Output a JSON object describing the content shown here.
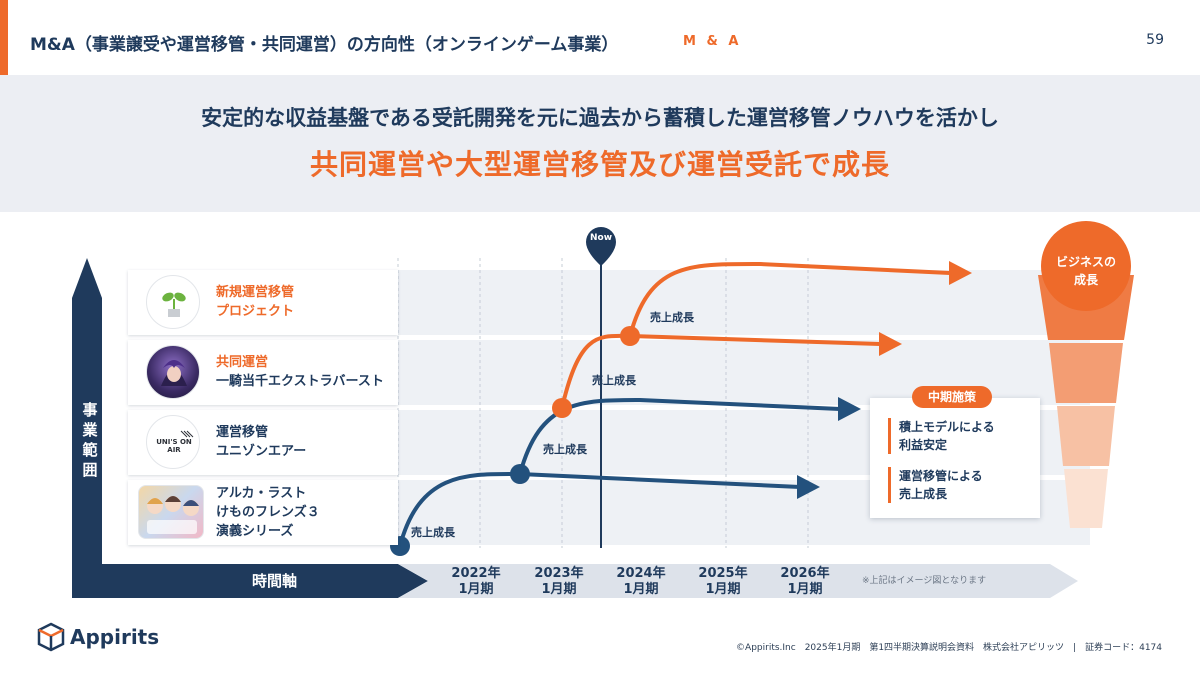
{
  "header": {
    "title": "M&A（事業譲受や運営移管・共同運営）の方向性（オンラインゲーム事業）",
    "tag": "M & A",
    "page_number": "59"
  },
  "banner": {
    "line1": "安定的な収益基盤である受託開発を元に過去から蓄積した運営移管ノウハウを活かし",
    "line2": "共同運営や大型運営移管及び運営受託で成長"
  },
  "now_label": "Now",
  "rows": [
    {
      "line1": "新規運営移管",
      "line2": "プロジェクト",
      "line3": "",
      "icon": "sprout-icon"
    },
    {
      "line1": "共同運営",
      "line2": "一騎当千エクストラバースト",
      "line3": "",
      "icon": "game-character-icon"
    },
    {
      "line1": "運営移管",
      "line2": "ユニゾンエアー",
      "line3": "",
      "icon": "unisons-air-logo",
      "logo_text": "UNI'S ON AIR"
    },
    {
      "line1": "アルカ・ラスト",
      "line2": "けものフレンズ３",
      "line3": "演義シリーズ",
      "icon": "game-characters-icon"
    }
  ],
  "growth_label": "売上成長",
  "axes": {
    "y_label": "事業範囲",
    "x_label": "時間軸",
    "years": [
      {
        "year": "2022年",
        "period": "1月期"
      },
      {
        "year": "2023年",
        "period": "1月期"
      },
      {
        "year": "2024年",
        "period": "1月期"
      },
      {
        "year": "2025年",
        "period": "1月期"
      },
      {
        "year": "2026年",
        "period": "1月期"
      }
    ],
    "note": "※上記はイメージ図となります"
  },
  "policy": {
    "badge": "中期施策",
    "items": [
      {
        "line1": "積上モデルによる",
        "line2": "利益安定"
      },
      {
        "line1": "運営移管による",
        "line2": "売上成長"
      }
    ]
  },
  "business_growth": {
    "line1": "ビジネスの",
    "line2": "成長"
  },
  "footer": {
    "logo_text": "Appirits",
    "copyright": "©Appirits.Inc　2025年1月期　第1四半期決算説明会資料　株式会社アピリッツ　|　証券コード：4174"
  },
  "colors": {
    "accent": "#ee6a2a",
    "navy": "#1f3a5c",
    "blue": "#23517d"
  }
}
